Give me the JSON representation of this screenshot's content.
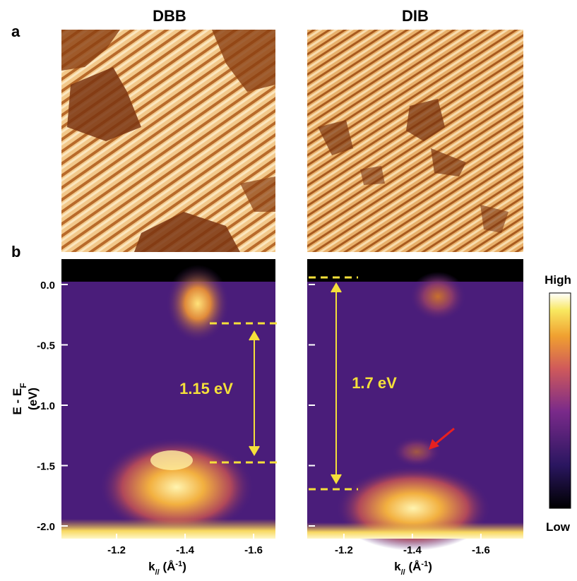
{
  "panel_labels": [
    "a",
    "b"
  ],
  "columns": [
    {
      "title": "DBB",
      "gap_label": "1.15 eV"
    },
    {
      "title": "DIB",
      "gap_label": "1.7 eV"
    }
  ],
  "y_axis": {
    "label": {
      "main": "E - E",
      "sub": "F",
      "unit": "(eV)"
    },
    "ticks": [
      {
        "value": 0,
        "label": "0.0"
      },
      {
        "value": -0.5,
        "label": "-0.5"
      },
      {
        "value": -1,
        "label": "-1.0"
      },
      {
        "value": -1.5,
        "label": "-1.5"
      },
      {
        "value": -2,
        "label": "-2.0"
      }
    ]
  },
  "x_axis": {
    "label": {
      "main": "k",
      "sub": "//",
      "unit_open": " (Å",
      "sup": "-1",
      "unit_close": ")"
    },
    "ticks": [
      {
        "value": -1.2,
        "label": "-1.2"
      },
      {
        "value": -1.4,
        "label": "-1.4"
      },
      {
        "value": -1.6,
        "label": "-1.6"
      }
    ]
  },
  "colorbar": {
    "high": "High",
    "low": "Low"
  }
}
